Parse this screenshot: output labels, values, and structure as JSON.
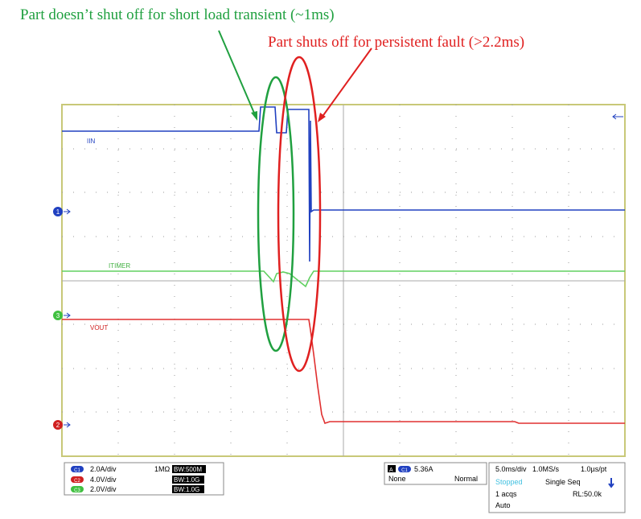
{
  "annotations": {
    "short_transient": "Part doesn’t shut off for short load transient (~1ms)",
    "persistent_fault": "Part shuts off for persistent fault (>2.2ms)"
  },
  "traces": {
    "iin": "IIN",
    "itimer": "ITIMER",
    "vout": "VOUT"
  },
  "markers": [
    "1",
    "3",
    "2"
  ],
  "channels": [
    {
      "id": "C1",
      "scale": "2.0A/div",
      "impedance": "1MΩ",
      "bandwidth": "BW:500M"
    },
    {
      "id": "C2",
      "scale": "4.0V/div",
      "bandwidth": "BW:1.0G"
    },
    {
      "id": "C3",
      "scale": "2.0V/div",
      "bandwidth": "BW:1.0G"
    }
  ],
  "trigger": {
    "source": "A",
    "channel": "C1",
    "level": "5.36A",
    "coupling": "None",
    "mode": "Normal"
  },
  "acquisition": {
    "timebase": "5.0ms/div",
    "rate": "1.0MS/s",
    "resolution": "1.0µs/pt",
    "state": "Stopped",
    "sequence": "Single Seq",
    "count": "1 acqs",
    "record": "RL:50.0k",
    "trigger_mode": "Auto"
  }
}
